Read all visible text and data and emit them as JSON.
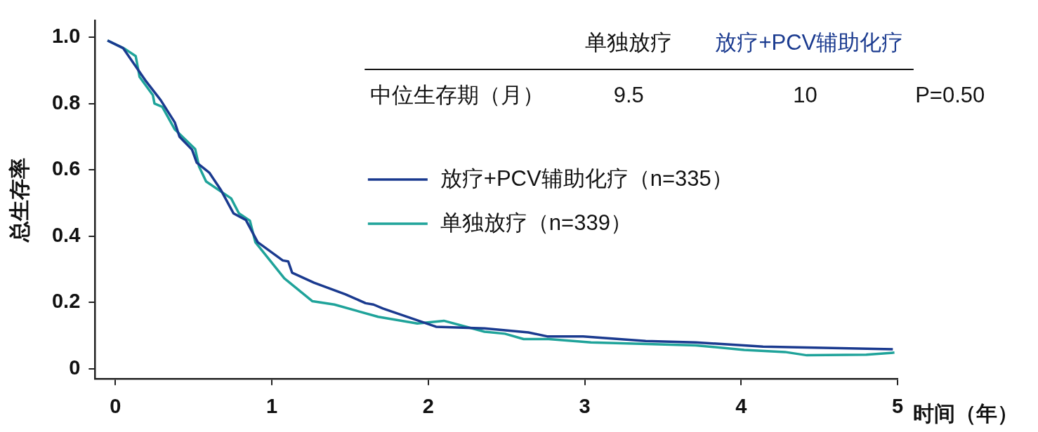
{
  "chart_data": {
    "type": "line",
    "xlabel": "时间（年）",
    "ylabel": "总生存率",
    "xlim": [
      -0.13,
      5
    ],
    "xticks": [
      0,
      1,
      2,
      3,
      4,
      5
    ],
    "ylim": [
      -0.03,
      1.05
    ],
    "yticks": [
      {
        "value": 0,
        "label": "0"
      },
      {
        "value": 0.2,
        "label": "0.2"
      },
      {
        "value": 0.4,
        "label": "0.4"
      },
      {
        "value": 0.6,
        "label": "0.6"
      },
      {
        "value": 0.8,
        "label": "0.8"
      },
      {
        "value": 1,
        "label": "1.0"
      }
    ],
    "grid": false,
    "legend": "right",
    "marker": "none",
    "line_style": "solid",
    "annotations": [
      "单独放疗",
      "放疗+PCV辅助化疗",
      "中位生存期（月）",
      "9.5",
      "10",
      "P=0.50"
    ],
    "series": [
      {
        "name": "放疗+PCV辅助化疗（n=335）",
        "color": "#1a3a8f",
        "x": [
          -0.05,
          0.05,
          0.19,
          0.29,
          0.38,
          0.41,
          0.49,
          0.52,
          0.6,
          0.675,
          0.755,
          0.834,
          0.91,
          1.07,
          1.105,
          1.13,
          1.27,
          1.47,
          1.6,
          1.65,
          1.71,
          2.05,
          2.36,
          2.64,
          2.76,
          2.99,
          3.39,
          3.71,
          4.14,
          4.97
        ],
        "values": [
          0.99,
          0.967,
          0.871,
          0.81,
          0.743,
          0.7,
          0.661,
          0.622,
          0.592,
          0.539,
          0.469,
          0.449,
          0.382,
          0.327,
          0.324,
          0.29,
          0.26,
          0.225,
          0.198,
          0.194,
          0.182,
          0.127,
          0.122,
          0.11,
          0.098,
          0.098,
          0.084,
          0.08,
          0.067,
          0.059
        ]
      },
      {
        "name": "单独放疗（n=339）",
        "color": "#1fa39a",
        "x": [
          -0.05,
          0.06,
          0.13,
          0.155,
          0.24,
          0.25,
          0.3,
          0.38,
          0.51,
          0.535,
          0.58,
          0.74,
          0.79,
          0.86,
          0.895,
          1.08,
          1.26,
          1.4,
          1.68,
          1.93,
          2.1,
          2.36,
          2.49,
          2.61,
          2.77,
          3.04,
          3.71,
          4.02,
          4.28,
          4.42,
          4.8,
          4.98
        ],
        "values": [
          0.99,
          0.965,
          0.943,
          0.88,
          0.825,
          0.8,
          0.79,
          0.722,
          0.663,
          0.61,
          0.565,
          0.514,
          0.469,
          0.447,
          0.382,
          0.273,
          0.204,
          0.194,
          0.157,
          0.137,
          0.145,
          0.112,
          0.106,
          0.09,
          0.09,
          0.08,
          0.071,
          0.057,
          0.051,
          0.041,
          0.043,
          0.049
        ]
      }
    ]
  }
}
